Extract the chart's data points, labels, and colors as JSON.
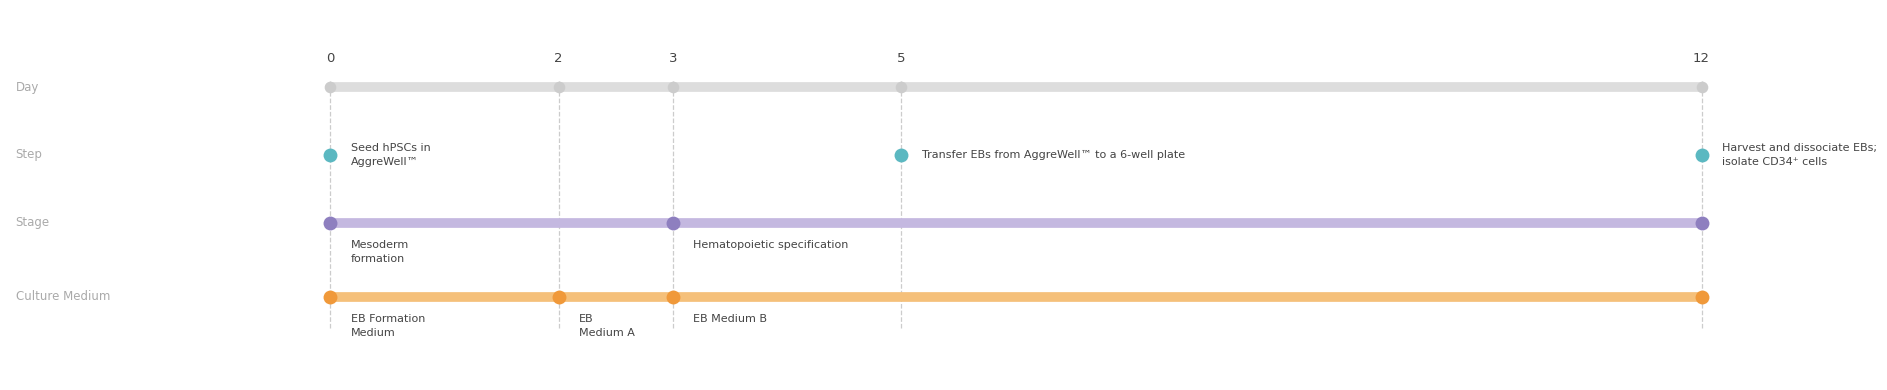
{
  "days": [
    0,
    2,
    3,
    5,
    12
  ],
  "day_labels": [
    "0",
    "2",
    "3",
    "5",
    "12"
  ],
  "row_labels": [
    "Day",
    "Step",
    "Stage",
    "Culture Medium"
  ],
  "bg_color": "#ffffff",
  "label_color": "#aaaaaa",
  "text_color": "#444444",
  "day_line_color": "#dddddd",
  "day_dot_color": "#cccccc",
  "dashed_line_color": "#cccccc",
  "step_dot_color": "#5bb8c1",
  "stage_line_color": "#c4b8e0",
  "stage_dot_color": "#8e7fbf",
  "medium_line_color": "#f5c07a",
  "medium_dot_color": "#f0993a",
  "step_annotations": [
    {
      "day": 0,
      "text": "Seed hPSCs in\nAggreWell™"
    },
    {
      "day": 5,
      "text": "Transfer EBs from AggreWell™ to a 6-well plate"
    },
    {
      "day": 12,
      "text": "Harvest and dissociate EBs;\nisolate CD34⁺ cells"
    }
  ],
  "stage_annotations": [
    {
      "day": 0,
      "text": "Mesoderm\nformation"
    },
    {
      "day": 3,
      "text": "Hematopoietic specification"
    }
  ],
  "medium_annotations": [
    {
      "day": 0,
      "text": "EB Formation\nMedium"
    },
    {
      "day": 2,
      "text": "EB\nMedium A"
    },
    {
      "day": 3,
      "text": "EB Medium B"
    }
  ],
  "day_linewidth": 7,
  "stage_linewidth": 7,
  "medium_linewidth": 7,
  "dot_size": 100,
  "day_dot_size": 70,
  "fontsize_labels": 8.5,
  "fontsize_days": 9.5,
  "fontsize_annotations": 8.0
}
